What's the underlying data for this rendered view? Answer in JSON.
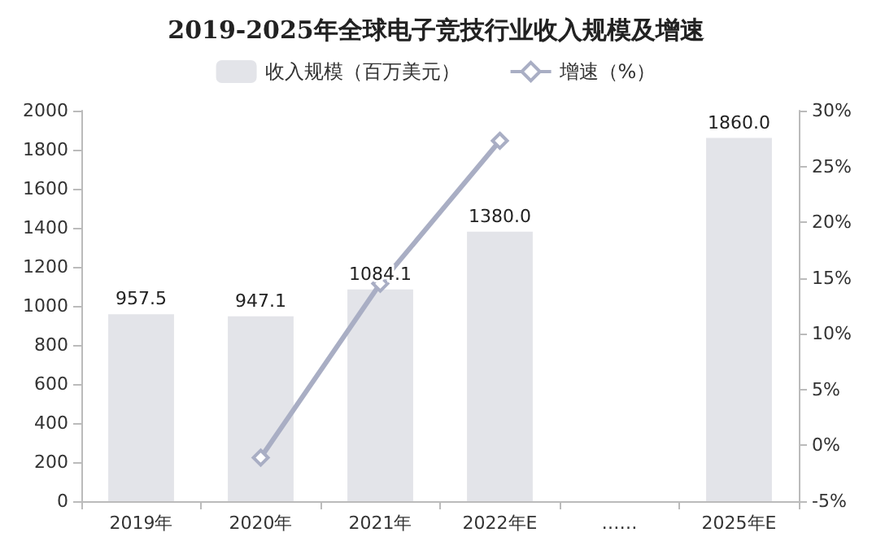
{
  "chart_data": {
    "type": "bar",
    "title": "2019-2025年全球电子竞技行业收入规模及增速",
    "categories": [
      "2019年",
      "2020年",
      "2021年",
      "2022年E",
      "……",
      "2025年E"
    ],
    "series": [
      {
        "name": "收入规模（百万美元）",
        "color": "#e3e4e9",
        "values": [
          957.5,
          947.1,
          1084.1,
          1380.0,
          null,
          1860.0
        ],
        "value_labels": [
          "957.5",
          "947.1",
          "1084.1",
          "1380.0",
          null,
          "1860.0"
        ]
      },
      {
        "name": "增速（%）",
        "type": "line",
        "axis": "y2",
        "color": "#a9aec4",
        "marker": "diamond",
        "values": [
          null,
          -1.1,
          14.5,
          27.3,
          null,
          null
        ]
      }
    ],
    "ylim": [
      0,
      2000
    ],
    "yticks": [
      0,
      200,
      400,
      600,
      800,
      1000,
      1200,
      1400,
      1600,
      1800,
      2000
    ],
    "y2lim": [
      -5,
      30
    ],
    "y2ticks": [
      {
        "value": -5,
        "label": "-5%"
      },
      {
        "value": 0,
        "label": "0%"
      },
      {
        "value": 5,
        "label": "5%"
      },
      {
        "value": 10,
        "label": "10%"
      },
      {
        "value": 15,
        "label": "15%"
      },
      {
        "value": 20,
        "label": "20%"
      },
      {
        "value": 25,
        "label": "25%"
      },
      {
        "value": 30,
        "label": "30%"
      }
    ],
    "legend": "top",
    "grid": false
  }
}
